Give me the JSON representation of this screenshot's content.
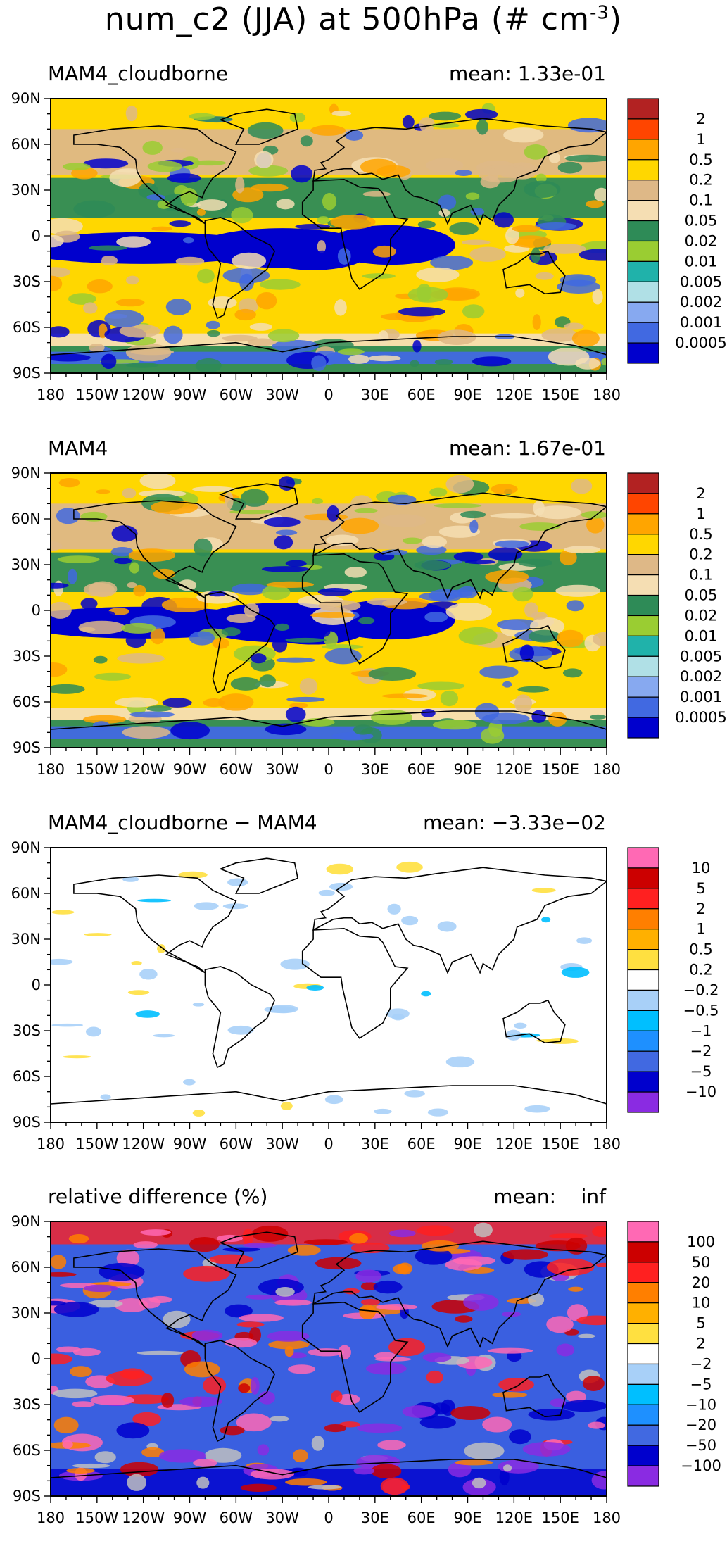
{
  "title": {
    "prefix": "num_c2 (JJA) at 500hPa (# cm",
    "exponent": "-3",
    "suffix": ")"
  },
  "chart_data": [
    {
      "type": "heatmap",
      "panel": "MAM4_cloudborne",
      "mean_text": "mean: 1.33e-01",
      "xtick_labels": [
        "180",
        "150W",
        "120W",
        "90W",
        "60W",
        "30W",
        "0",
        "30E",
        "60E",
        "90E",
        "120E",
        "150E",
        "180"
      ],
      "ytick_labels": [
        "90N",
        "60N",
        "30N",
        "0",
        "30S",
        "60S",
        "90S"
      ],
      "colorbar": {
        "levels": [
          "2",
          "1",
          "0.5",
          "0.2",
          "0.1",
          "0.05",
          "0.02",
          "0.01",
          "0.005",
          "0.002",
          "0.001",
          "0.0005"
        ],
        "colors": [
          "#b22222",
          "#ff4500",
          "#ffa500",
          "#ffd700",
          "#deb887",
          "#f5deb3",
          "#2e8b57",
          "#9acd32",
          "#20b2aa",
          "#b0e0e6",
          "#87a9f0",
          "#4169e1",
          "#0000cd"
        ]
      },
      "background": "#ffd700"
    },
    {
      "type": "heatmap",
      "panel": "MAM4",
      "mean_text": "mean: 1.67e-01",
      "xtick_labels": [
        "180",
        "150W",
        "120W",
        "90W",
        "60W",
        "30W",
        "0",
        "30E",
        "60E",
        "90E",
        "120E",
        "150E",
        "180"
      ],
      "ytick_labels": [
        "90N",
        "60N",
        "30N",
        "0",
        "30S",
        "60S",
        "90S"
      ],
      "colorbar": {
        "levels": [
          "2",
          "1",
          "0.5",
          "0.2",
          "0.1",
          "0.05",
          "0.02",
          "0.01",
          "0.005",
          "0.002",
          "0.001",
          "0.0005"
        ],
        "colors": [
          "#b22222",
          "#ff4500",
          "#ffa500",
          "#ffd700",
          "#deb887",
          "#f5deb3",
          "#2e8b57",
          "#9acd32",
          "#20b2aa",
          "#b0e0e6",
          "#87a9f0",
          "#4169e1",
          "#0000cd"
        ]
      },
      "background": "#ffd700"
    },
    {
      "type": "heatmap",
      "panel": "MAM4_cloudborne − MAM4",
      "mean_text": "mean: −3.33e−02",
      "xtick_labels": [
        "180",
        "150W",
        "120W",
        "90W",
        "60W",
        "30W",
        "0",
        "30E",
        "60E",
        "90E",
        "120E",
        "150E",
        "180"
      ],
      "ytick_labels": [
        "90N",
        "60N",
        "30N",
        "0",
        "30S",
        "60S",
        "90S"
      ],
      "colorbar": {
        "levels": [
          "10",
          "5",
          "2",
          "1",
          "0.5",
          "0.2",
          "−0.2",
          "−0.5",
          "−1",
          "−2",
          "−5",
          "−10"
        ],
        "colors": [
          "#ff69b4",
          "#cc0000",
          "#ff2020",
          "#ff7f00",
          "#ffb000",
          "#ffe040",
          "#ffffff",
          "#a8d0f8",
          "#00bfff",
          "#1e90ff",
          "#4169e1",
          "#0000cd",
          "#8a2be2"
        ]
      },
      "background": "#ffffff"
    },
    {
      "type": "heatmap",
      "panel": "relative difference (%)",
      "mean_text": "mean:    inf",
      "xtick_labels": [
        "180",
        "150W",
        "120W",
        "90W",
        "60W",
        "30W",
        "0",
        "30E",
        "60E",
        "90E",
        "120E",
        "150E",
        "180"
      ],
      "ytick_labels": [
        "90N",
        "60N",
        "30N",
        "0",
        "30S",
        "60S",
        "90S"
      ],
      "colorbar": {
        "levels": [
          "100",
          "50",
          "20",
          "10",
          "5",
          "2",
          "−2",
          "−5",
          "−10",
          "−20",
          "−50",
          "−100"
        ],
        "colors": [
          "#ff69b4",
          "#cc0000",
          "#ff2020",
          "#ff7f00",
          "#ffb000",
          "#ffe040",
          "#ffffff",
          "#a8d0f8",
          "#00bfff",
          "#1e90ff",
          "#4169e1",
          "#0000cd",
          "#8a2be2"
        ]
      },
      "background": "#3a5fe0"
    }
  ]
}
